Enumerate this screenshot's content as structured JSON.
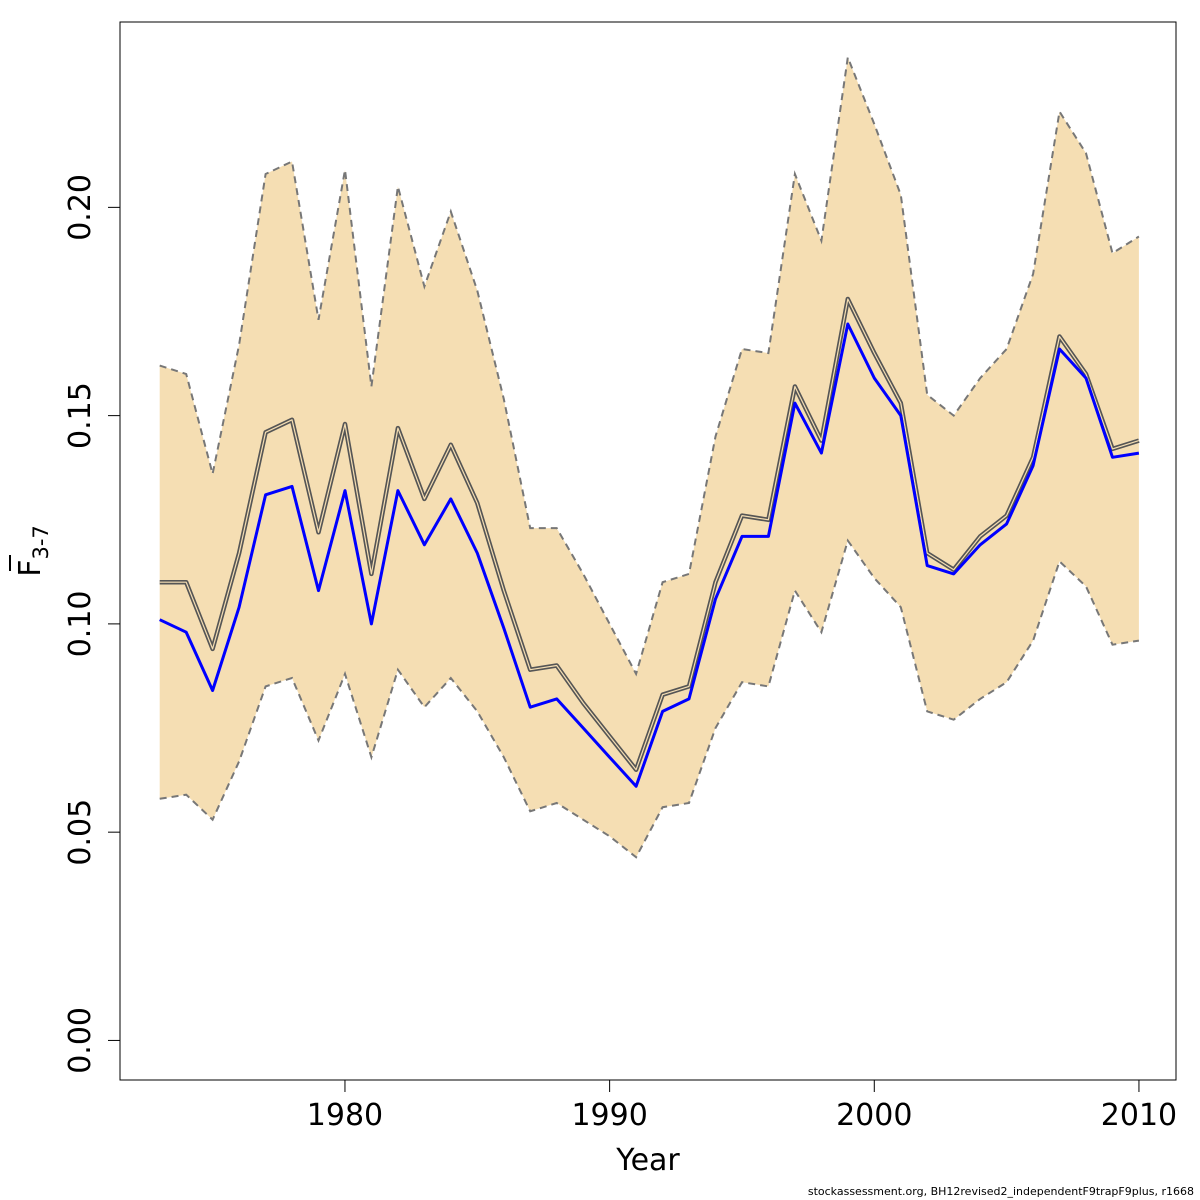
{
  "chart_data": {
    "type": "line",
    "xlabel": "Year",
    "ylabel": {
      "main": "F",
      "subscript": "3-7",
      "overbar": true
    },
    "xlim": [
      1971.5,
      2011.4
    ],
    "ylim": [
      -0.0095,
      0.2445
    ],
    "xticks": [
      1980,
      1990,
      2000,
      2010
    ],
    "xtick_labels": [
      "1980",
      "1990",
      "2000",
      "2010"
    ],
    "yticks": [
      0.0,
      0.05,
      0.1,
      0.15,
      0.2
    ],
    "ytick_labels": [
      "0.00",
      "0.05",
      "0.10",
      "0.15",
      "0.20"
    ],
    "grid": false,
    "x": [
      1973,
      1974,
      1975,
      1976,
      1977,
      1978,
      1979,
      1980,
      1981,
      1982,
      1983,
      1984,
      1985,
      1986,
      1987,
      1988,
      1989,
      1990,
      1991,
      1992,
      1993,
      1994,
      1995,
      1996,
      1997,
      1998,
      1999,
      2000,
      2001,
      2002,
      2003,
      2004,
      2005,
      2006,
      2007,
      2008,
      2009,
      2010
    ],
    "series": [
      {
        "role": "estimate",
        "color": "#555555",
        "values": [
          0.11,
          0.11,
          0.094,
          0.117,
          0.146,
          0.149,
          0.122,
          0.148,
          0.112,
          0.147,
          0.13,
          0.143,
          0.129,
          0.108,
          0.089,
          0.09,
          0.081,
          0.073,
          0.065,
          0.083,
          0.085,
          0.11,
          0.126,
          0.125,
          0.157,
          0.144,
          0.178,
          0.165,
          0.153,
          0.117,
          0.113,
          0.121,
          0.126,
          0.14,
          0.169,
          0.16,
          0.142,
          0.144
        ]
      },
      {
        "role": "line",
        "color": "#0000ff",
        "values": [
          0.101,
          0.098,
          0.084,
          0.104,
          0.131,
          0.133,
          0.108,
          0.132,
          0.1,
          0.132,
          0.119,
          0.13,
          0.117,
          0.099,
          0.08,
          0.082,
          0.075,
          0.068,
          0.061,
          0.079,
          0.082,
          0.106,
          0.121,
          0.121,
          0.153,
          0.141,
          0.172,
          0.159,
          0.15,
          0.114,
          0.112,
          0.119,
          0.124,
          0.138,
          0.166,
          0.159,
          0.14,
          0.141
        ]
      }
    ],
    "band": {
      "color": "#f5deb3",
      "upper": [
        0.162,
        0.16,
        0.136,
        0.167,
        0.208,
        0.211,
        0.173,
        0.209,
        0.157,
        0.205,
        0.181,
        0.199,
        0.18,
        0.154,
        0.123,
        0.123,
        0.112,
        0.1,
        0.088,
        0.11,
        0.112,
        0.145,
        0.166,
        0.165,
        0.208,
        0.192,
        0.236,
        0.22,
        0.203,
        0.155,
        0.15,
        0.159,
        0.166,
        0.184,
        0.223,
        0.213,
        0.189,
        0.193
      ],
      "lower": [
        0.058,
        0.059,
        0.053,
        0.067,
        0.085,
        0.087,
        0.072,
        0.088,
        0.068,
        0.089,
        0.08,
        0.087,
        0.079,
        0.068,
        0.055,
        0.057,
        0.053,
        0.049,
        0.044,
        0.056,
        0.057,
        0.075,
        0.086,
        0.085,
        0.108,
        0.098,
        0.12,
        0.111,
        0.104,
        0.079,
        0.077,
        0.082,
        0.086,
        0.096,
        0.115,
        0.109,
        0.095,
        0.096
      ]
    }
  },
  "footnote": "stockassessment.org, BH12revised2_independentF9trapF9plus, r1668"
}
